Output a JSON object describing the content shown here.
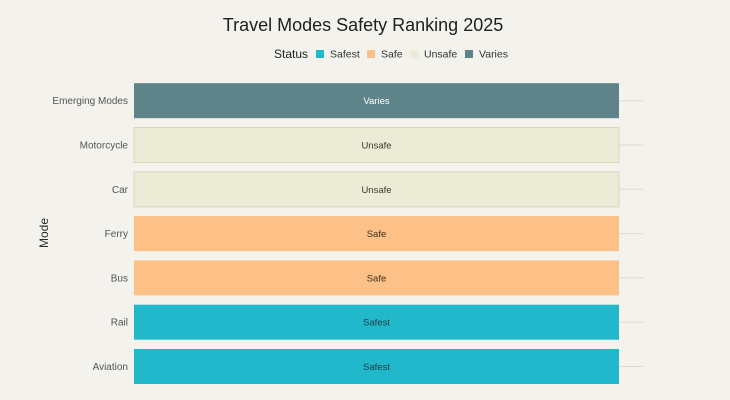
{
  "chart_data": {
    "type": "bar",
    "orientation": "horizontal",
    "title": "Travel Modes Safety Ranking 2025",
    "ylabel": "Mode",
    "xlabel": "",
    "grid": true,
    "legend": {
      "title": "Status",
      "placement": "top-center",
      "entries": [
        {
          "name": "Safest",
          "color": "#22b8cc"
        },
        {
          "name": "Safe",
          "color": "#fdc086"
        },
        {
          "name": "Unsafe",
          "color": "#ecebd6"
        },
        {
          "name": "Varies",
          "color": "#5e8388"
        }
      ]
    },
    "categories": [
      "Aviation",
      "Rail",
      "Bus",
      "Ferry",
      "Car",
      "Motorcycle",
      "Emerging Modes"
    ],
    "statuses": [
      "Safest",
      "Safest",
      "Safe",
      "Safe",
      "Unsafe",
      "Unsafe",
      "Varies"
    ],
    "values": [
      1,
      1,
      1,
      1,
      1,
      1,
      1
    ],
    "xlim": [
      0,
      1
    ],
    "text_colors": {
      "Safest": "#1f3a40",
      "Safe": "#3a3020",
      "Unsafe": "#3a3a30",
      "Varies": "#ffffff"
    }
  }
}
